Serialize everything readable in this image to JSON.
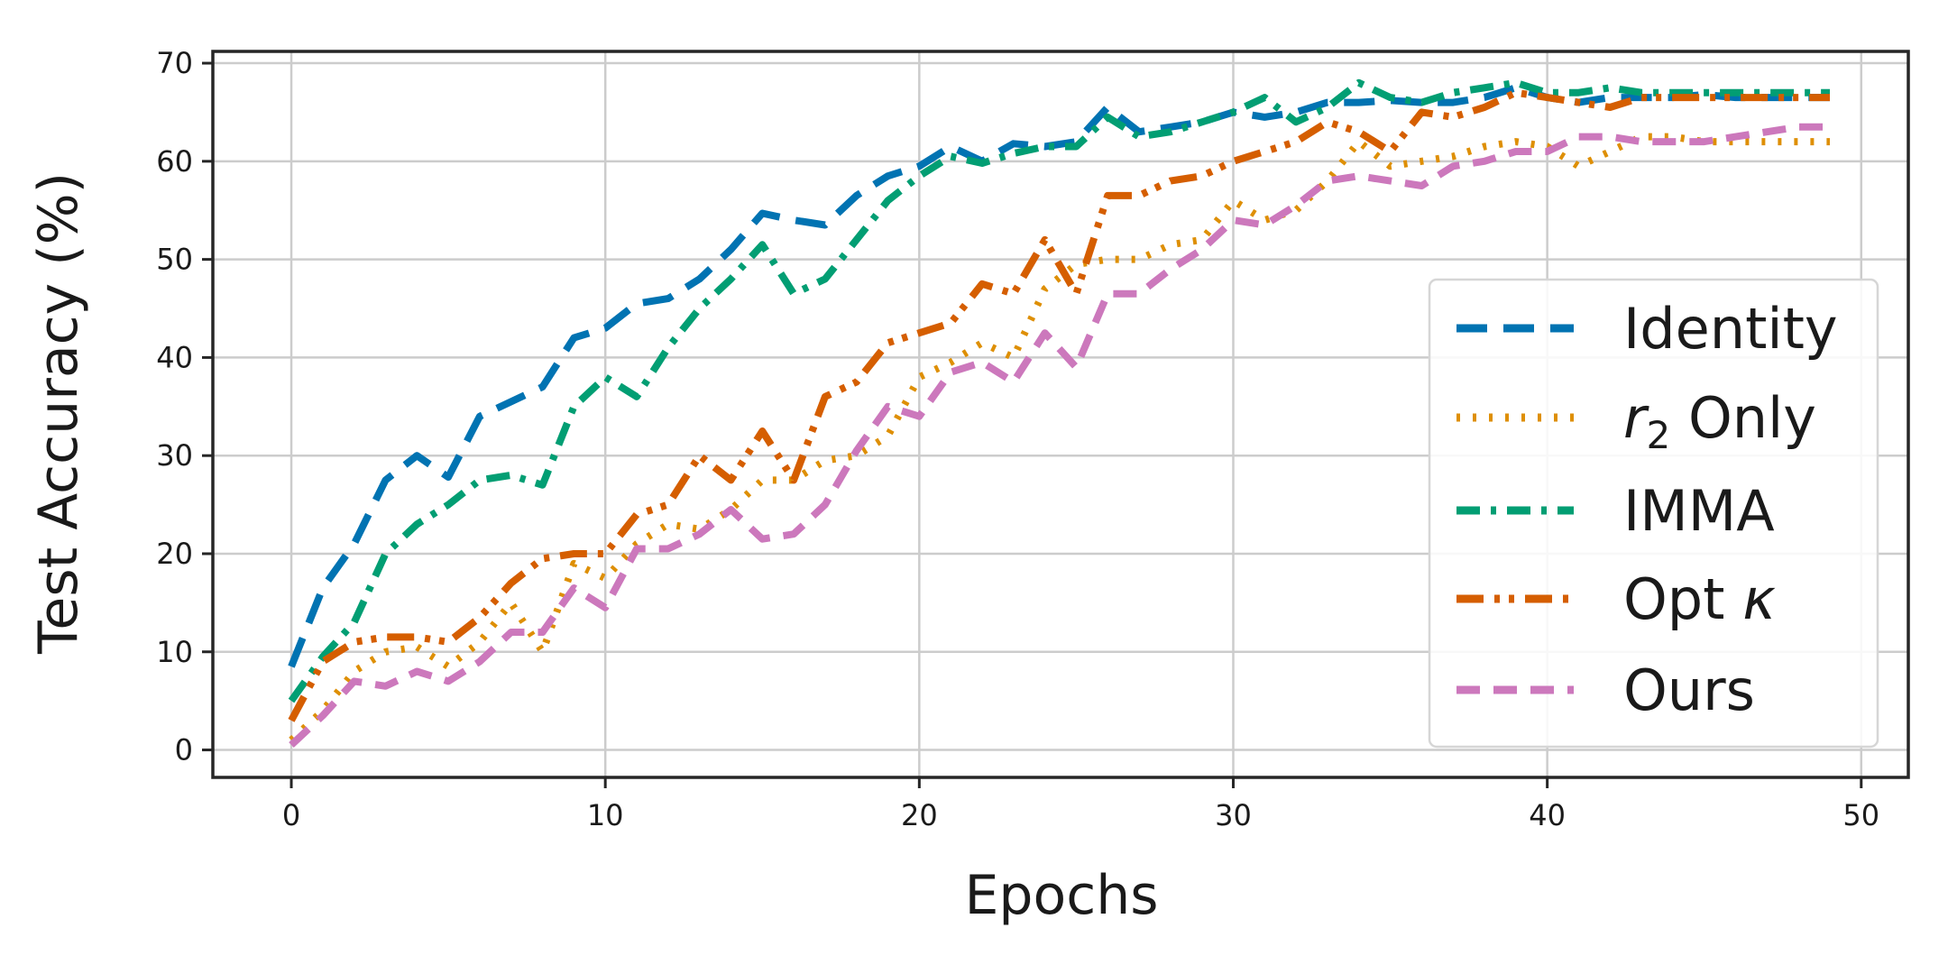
{
  "chart_data": {
    "type": "line",
    "title": "",
    "xlabel": "Epochs",
    "ylabel": "Test Accuracy (%)",
    "xlim": [
      -2.5,
      51.5
    ],
    "ylim": [
      -2.8,
      71.2
    ],
    "xticks": [
      0,
      10,
      20,
      30,
      40,
      50
    ],
    "yticks": [
      0,
      10,
      20,
      30,
      40,
      50,
      60,
      70
    ],
    "grid": true,
    "legend_position": "lower right",
    "x": [
      0,
      1,
      2,
      3,
      4,
      5,
      6,
      7,
      8,
      9,
      10,
      11,
      12,
      13,
      14,
      15,
      16,
      17,
      18,
      19,
      20,
      21,
      22,
      23,
      24,
      25,
      26,
      27,
      28,
      29,
      30,
      31,
      32,
      33,
      34,
      35,
      36,
      37,
      38,
      39,
      40,
      41,
      42,
      43,
      44,
      45,
      46,
      47,
      48,
      49
    ],
    "series": [
      {
        "name": "Identity",
        "color": "#0173b2",
        "dash": "solid-dashed",
        "values": [
          8.5,
          16.5,
          21.0,
          27.5,
          30.0,
          27.8,
          34.0,
          35.5,
          37.0,
          42.0,
          43.0,
          45.5,
          46.0,
          48.0,
          51.0,
          54.7,
          54.0,
          53.5,
          56.5,
          58.5,
          59.5,
          61.5,
          60.0,
          61.8,
          61.5,
          62.0,
          65.5,
          63.0,
          63.5,
          64.0,
          65.0,
          64.5,
          65.0,
          66.0,
          66.0,
          66.2,
          66.0,
          66.0,
          66.5,
          67.5,
          66.5,
          66.0,
          66.5,
          66.5,
          66.5,
          66.8,
          66.5,
          66.5,
          66.5,
          66.5
        ]
      },
      {
        "name": "r2 Only",
        "color": "#de8f05",
        "dash": "dotted",
        "values": [
          1.0,
          4.0,
          8.0,
          10.0,
          10.5,
          8.5,
          11.0,
          15.0,
          10.0,
          19.0,
          17.5,
          21.0,
          23.0,
          22.5,
          24.5,
          27.5,
          27.5,
          29.5,
          30.0,
          32.0,
          38.0,
          39.5,
          41.5,
          40.0,
          47.0,
          49.5,
          50.0,
          50.0,
          51.5,
          52.0,
          56.0,
          54.0,
          55.0,
          58.0,
          62.0,
          59.5,
          60.0,
          60.5,
          61.5,
          62.0,
          61.5,
          59.5,
          61.0,
          62.5,
          62.5,
          62.0,
          62.0,
          62.0,
          62.0,
          62.0
        ]
      },
      {
        "name": "IMMA",
        "color": "#029e73",
        "dash": "dashdot",
        "values": [
          5.0,
          9.5,
          13.0,
          20.0,
          23.0,
          25.0,
          27.5,
          28.0,
          27.0,
          35.0,
          38.0,
          36.0,
          41.0,
          45.0,
          48.0,
          51.5,
          46.5,
          48.0,
          52.0,
          56.0,
          58.5,
          60.5,
          59.8,
          60.8,
          61.5,
          61.5,
          64.5,
          62.5,
          63.0,
          64.0,
          65.0,
          66.5,
          64.0,
          65.5,
          68.0,
          66.5,
          66.0,
          67.0,
          67.5,
          68.0,
          67.0,
          67.0,
          67.5,
          67.0,
          67.0,
          67.0,
          67.0,
          67.0,
          67.0,
          67.0
        ]
      },
      {
        "name": "Opt κ",
        "color": "#d55e00",
        "dash": "dashdotdot",
        "values": [
          3.0,
          9.0,
          11.0,
          11.5,
          11.5,
          11.0,
          13.5,
          17.0,
          19.5,
          20.0,
          20.0,
          24.0,
          25.0,
          30.0,
          27.5,
          32.5,
          27.5,
          36.0,
          37.5,
          41.5,
          42.5,
          43.5,
          47.5,
          46.5,
          52.0,
          46.5,
          56.5,
          56.5,
          58.0,
          58.5,
          60.0,
          61.0,
          62.0,
          64.0,
          63.0,
          61.0,
          65.0,
          64.5,
          65.5,
          67.0,
          66.5,
          66.0,
          65.5,
          66.5,
          66.5,
          66.5,
          66.5,
          66.5,
          66.5,
          66.5
        ]
      },
      {
        "name": "Ours",
        "color": "#cc78bc",
        "dash": "dashed",
        "values": [
          0.5,
          3.5,
          7.0,
          6.5,
          8.0,
          7.0,
          9.0,
          12.0,
          12.0,
          16.5,
          14.5,
          20.5,
          20.5,
          22.0,
          24.5,
          21.5,
          22.0,
          25.0,
          30.5,
          35.0,
          34.0,
          38.5,
          39.5,
          37.5,
          42.5,
          39.0,
          46.5,
          46.5,
          49.0,
          51.0,
          54.0,
          53.5,
          55.5,
          58.0,
          58.5,
          58.0,
          57.5,
          59.5,
          60.0,
          61.0,
          61.0,
          62.5,
          62.5,
          62.0,
          62.0,
          62.0,
          62.5,
          63.0,
          63.5,
          63.5
        ]
      }
    ]
  },
  "legend": {
    "items": [
      {
        "label": "Identity"
      },
      {
        "label_italic": "r",
        "label_sub": "2",
        "label_rest": " Only"
      },
      {
        "label": "IMMA"
      },
      {
        "label_rest": "Opt ",
        "label_italic": "κ"
      },
      {
        "label": "Ours"
      }
    ]
  }
}
